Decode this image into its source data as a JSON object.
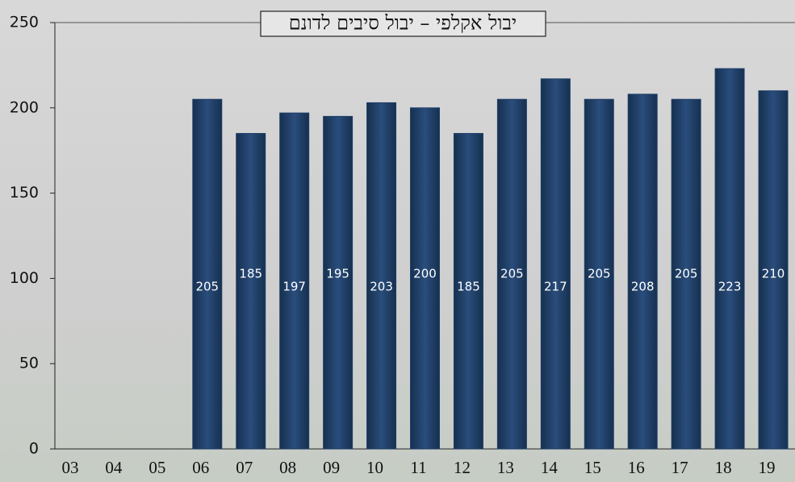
{
  "chart_data": {
    "type": "bar",
    "title": "יבול אקלפי – יבול סיבים לדונם",
    "categories": [
      "03",
      "04",
      "05",
      "06",
      "07",
      "08",
      "09",
      "10",
      "11",
      "12",
      "13",
      "14",
      "15",
      "16",
      "17",
      "18",
      "19"
    ],
    "values": [
      null,
      null,
      null,
      205,
      185,
      197,
      195,
      203,
      200,
      185,
      205,
      217,
      205,
      208,
      205,
      223,
      210
    ],
    "color": "#1f3f6a",
    "ylim": [
      0,
      250
    ],
    "yticks": [
      0,
      50,
      100,
      150,
      200,
      250
    ]
  }
}
